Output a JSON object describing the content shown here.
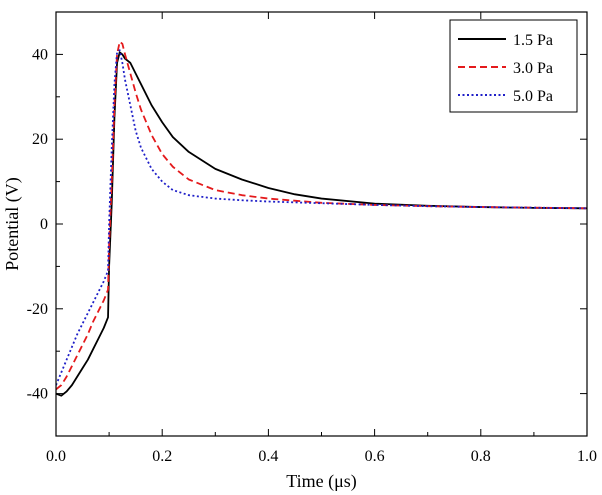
{
  "chart_data": {
    "type": "line",
    "xlabel": "Time (μs)",
    "ylabel": "Potential (V)",
    "xlim": [
      0.0,
      1.0
    ],
    "ylim": [
      -50,
      50
    ],
    "x_ticks": [
      0.0,
      0.2,
      0.4,
      0.6,
      0.8,
      1.0
    ],
    "x_tick_labels": [
      "0.0",
      "0.2",
      "0.4",
      "0.6",
      "0.8",
      "1.0"
    ],
    "y_ticks": [
      -40,
      -20,
      0,
      20,
      40
    ],
    "y_tick_labels": [
      "-40",
      "-20",
      "0",
      "20",
      "40"
    ],
    "grid": false,
    "legend_position": "top-right",
    "series": [
      {
        "name": "1.5 Pa",
        "color": "#000000",
        "dash": "solid",
        "x": [
          0.0,
          0.01,
          0.02,
          0.03,
          0.04,
          0.05,
          0.06,
          0.07,
          0.08,
          0.09,
          0.098,
          0.1,
          0.105,
          0.11,
          0.115,
          0.12,
          0.125,
          0.13,
          0.14,
          0.15,
          0.16,
          0.18,
          0.2,
          0.22,
          0.25,
          0.3,
          0.35,
          0.4,
          0.45,
          0.5,
          0.6,
          0.7,
          0.8,
          0.9,
          1.0
        ],
        "values": [
          -40,
          -40.5,
          -39.5,
          -38,
          -36,
          -34,
          -32,
          -29.5,
          -27,
          -24.5,
          -22,
          -10,
          5,
          25,
          38,
          40.5,
          40,
          39,
          38,
          35.5,
          33,
          28,
          24,
          20.5,
          17,
          13,
          10.5,
          8.5,
          7,
          6,
          4.8,
          4.3,
          4,
          3.8,
          3.7
        ]
      },
      {
        "name": "3.0 Pa",
        "color": "#e41a1c",
        "dash": "dashed",
        "x": [
          0.0,
          0.01,
          0.02,
          0.03,
          0.04,
          0.05,
          0.06,
          0.07,
          0.08,
          0.09,
          0.098,
          0.1,
          0.105,
          0.11,
          0.115,
          0.12,
          0.125,
          0.13,
          0.14,
          0.15,
          0.16,
          0.18,
          0.2,
          0.22,
          0.25,
          0.3,
          0.35,
          0.4,
          0.5,
          0.6,
          0.7,
          0.8,
          1.0
        ],
        "values": [
          -39,
          -38,
          -36,
          -33.5,
          -31,
          -28.5,
          -26,
          -23,
          -20.5,
          -18,
          -15.5,
          -5,
          10,
          28,
          40,
          43,
          42.5,
          40,
          35.5,
          31,
          27,
          21,
          16.5,
          13.5,
          10.5,
          8,
          6.8,
          6,
          5,
          4.5,
          4.2,
          4,
          3.7
        ]
      },
      {
        "name": "5.0 Pa",
        "color": "#1f1fc8",
        "dash": "dotted",
        "x": [
          0.0,
          0.01,
          0.02,
          0.03,
          0.04,
          0.05,
          0.06,
          0.07,
          0.08,
          0.09,
          0.098,
          0.1,
          0.105,
          0.11,
          0.115,
          0.12,
          0.125,
          0.13,
          0.14,
          0.15,
          0.16,
          0.18,
          0.2,
          0.22,
          0.25,
          0.3,
          0.35,
          0.4,
          0.5,
          0.6,
          0.7,
          0.8,
          1.0
        ],
        "values": [
          -38,
          -35,
          -32,
          -29,
          -26,
          -23.5,
          -21,
          -18.5,
          -16,
          -13.5,
          -11,
          0,
          18,
          33,
          40.5,
          41,
          38,
          34,
          28,
          22,
          18,
          13,
          10,
          8,
          6.8,
          6,
          5.6,
          5.3,
          4.9,
          4.5,
          4.2,
          4,
          3.7
        ]
      }
    ]
  }
}
